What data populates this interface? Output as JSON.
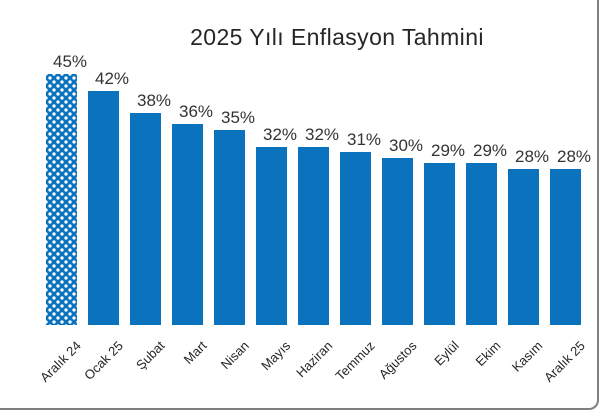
{
  "frame": {
    "border_color": "#7f7f7f"
  },
  "chart_data": {
    "type": "bar",
    "title": "2025 Yılı Enflasyon Tahmini",
    "categories": [
      "Aralık 24",
      "Ocak 25",
      "Şubat",
      "Mart",
      "Nisan",
      "Mayıs",
      "Haziran",
      "Temmuz",
      "Ağustos",
      "Eylül",
      "Ekim",
      "Kasım",
      "Aralık 25"
    ],
    "values": [
      45,
      42,
      38,
      36,
      35,
      32,
      32,
      31,
      30,
      29,
      29,
      28,
      28
    ],
    "value_labels": [
      "45%",
      "42%",
      "38%",
      "36%",
      "35%",
      "32%",
      "32%",
      "31%",
      "30%",
      "29%",
      "29%",
      "28%",
      "28%"
    ],
    "xlabel": "",
    "ylabel": "",
    "ylim": [
      0,
      47
    ],
    "grid": false,
    "legend_position": "none",
    "bar_color": "#0b72bd",
    "patterned_bar_index": 0,
    "patterned_bar_style": "white-dot-lattice",
    "label_color": "#333333",
    "title_color": "#262626"
  }
}
